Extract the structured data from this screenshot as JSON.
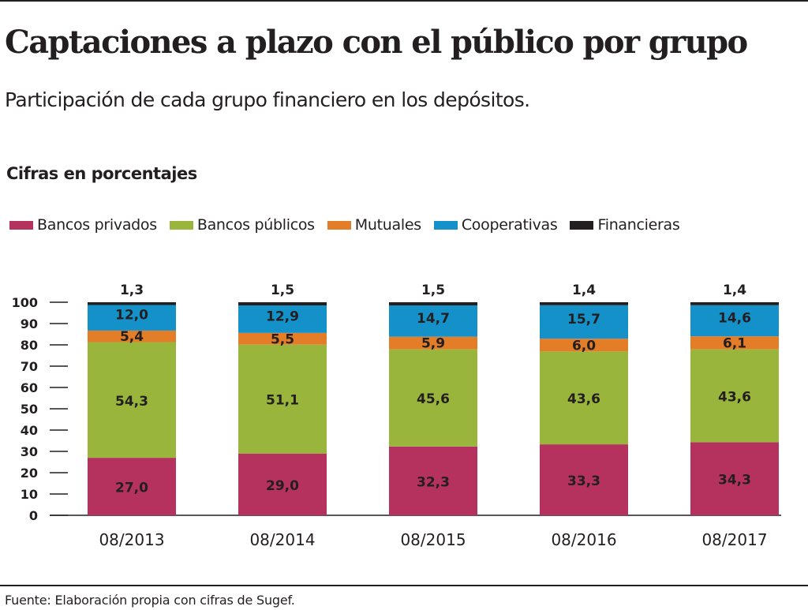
{
  "header": {
    "title": "Captaciones a plazo con el público por grupo",
    "subtitle": "Participación de cada grupo  financiero  en los depósitos.",
    "units": "Cifras en porcentajes"
  },
  "colors": {
    "bancos_privados": "#b5325e",
    "bancos_publicos": "#9ab53b",
    "mutuales": "#e47d27",
    "cooperativas": "#1591c9",
    "financieras": "#231f20"
  },
  "legend": [
    {
      "label": "Bancos privados",
      "color": "#b5325e"
    },
    {
      "label": "Bancos públicos",
      "color": "#9ab53b"
    },
    {
      "label": "Mutuales",
      "color": "#e47d27"
    },
    {
      "label": "Cooperativas",
      "color": "#1591c9"
    },
    {
      "label": "Financieras",
      "color": "#231f20"
    }
  ],
  "chart_data": {
    "type": "bar",
    "stacked": true,
    "categories": [
      "08/2013",
      "08/2014",
      "08/2015",
      "08/2016",
      "08/2017"
    ],
    "series": [
      {
        "name": "Bancos privados",
        "values": [
          27.0,
          29.0,
          32.3,
          33.3,
          34.3
        ],
        "labels": [
          "27,0",
          "29,0",
          "32,3",
          "33,3",
          "34,3"
        ]
      },
      {
        "name": "Bancos públicos",
        "values": [
          54.3,
          51.1,
          45.6,
          43.6,
          43.6
        ],
        "labels": [
          "54,3",
          "51,1",
          "45,6",
          "43,6",
          "43,6"
        ]
      },
      {
        "name": "Mutuales",
        "values": [
          5.4,
          5.5,
          5.9,
          6.0,
          6.1
        ],
        "labels": [
          "5,4",
          "5,5",
          "5,9",
          "6,0",
          "6,1"
        ]
      },
      {
        "name": "Cooperativas",
        "values": [
          12.0,
          12.9,
          14.7,
          15.7,
          14.6
        ],
        "labels": [
          "12,0",
          "12,9",
          "14,7",
          "15,7",
          "14,6"
        ]
      },
      {
        "name": "Financieras",
        "values": [
          1.3,
          1.5,
          1.5,
          1.4,
          1.4
        ],
        "labels": [
          "1,3",
          "1,5",
          "1,5",
          "1,4",
          "1,4"
        ]
      }
    ],
    "ylim": [
      0,
      100
    ],
    "yticks": [
      0,
      10,
      20,
      30,
      40,
      50,
      60,
      70,
      80,
      90,
      100
    ],
    "ytick_labels": [
      "0",
      "10",
      "20",
      "30",
      "40",
      "50",
      "60",
      "70",
      "80",
      "90",
      "100"
    ],
    "grid": false,
    "legend_position": "top"
  },
  "source": "Fuente: Elaboración propia con cifras de Sugef."
}
